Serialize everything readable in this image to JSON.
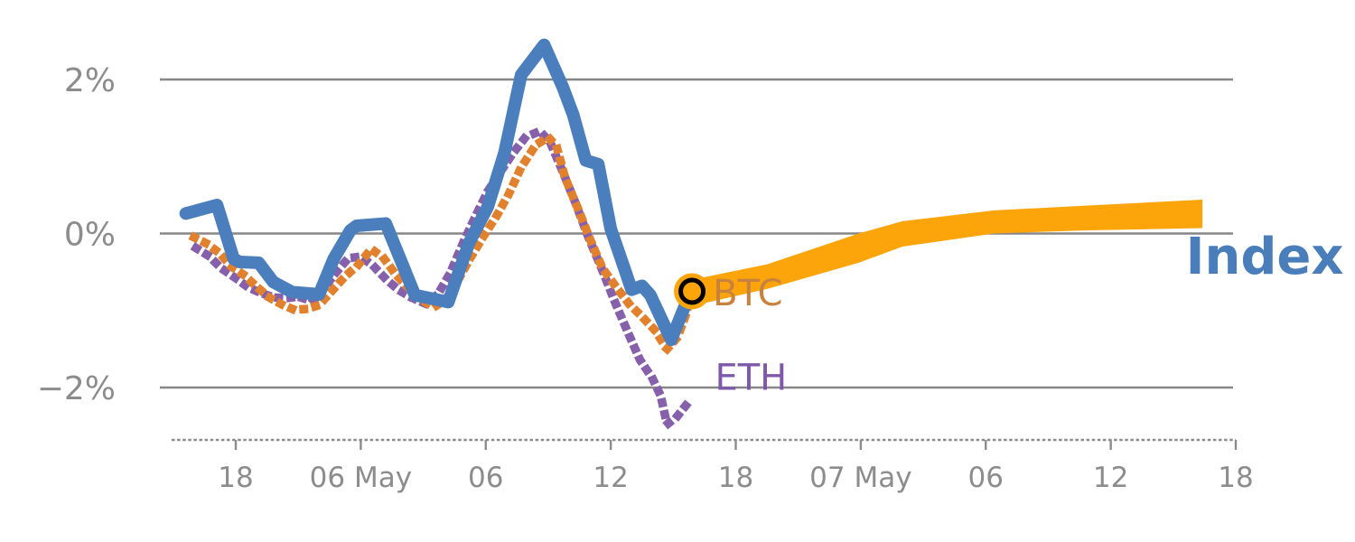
{
  "chart_data": {
    "type": "line",
    "title": "",
    "x_axis": {
      "unit": "hours relative to 05 May 18:00",
      "range_hours": [
        -3.65,
        48.0
      ],
      "ticks": [
        {
          "t": 0,
          "label": "18"
        },
        {
          "t": 6,
          "label": "06 May"
        },
        {
          "t": 12,
          "label": "06"
        },
        {
          "t": 18,
          "label": "12"
        },
        {
          "t": 24,
          "label": "18"
        },
        {
          "t": 30,
          "label": "07 May"
        },
        {
          "t": 36,
          "label": "06"
        },
        {
          "t": 42,
          "label": "12"
        },
        {
          "t": 48,
          "label": "18"
        }
      ]
    },
    "y_axis": {
      "unit": "percent change",
      "range": [
        -2.7,
        2.75
      ],
      "gridlines": [
        {
          "v": 2,
          "label": "2%"
        },
        {
          "v": 0,
          "label": "0%"
        },
        {
          "v": -2,
          "label": "−2%"
        }
      ]
    },
    "series": [
      {
        "name": "Index",
        "style": "solid",
        "color": "#4A7EBC",
        "points": [
          [
            -2.4,
            0.26
          ],
          [
            -0.9,
            0.37
          ],
          [
            -0.1,
            -0.33
          ],
          [
            0.2,
            -0.37
          ],
          [
            1.1,
            -0.38
          ],
          [
            1.8,
            -0.63
          ],
          [
            2.7,
            -0.76
          ],
          [
            4.0,
            -0.79
          ],
          [
            4.7,
            -0.33
          ],
          [
            5.5,
            0.04
          ],
          [
            5.8,
            0.1
          ],
          [
            7.2,
            0.13
          ],
          [
            8.0,
            -0.4
          ],
          [
            8.6,
            -0.8
          ],
          [
            10.2,
            -0.89
          ],
          [
            11.2,
            -0.12
          ],
          [
            12.1,
            0.35
          ],
          [
            12.9,
            1.05
          ],
          [
            13.7,
            2.06
          ],
          [
            14.8,
            2.45
          ],
          [
            15.7,
            1.9
          ],
          [
            16.2,
            1.54
          ],
          [
            16.8,
            0.95
          ],
          [
            17.4,
            0.9
          ],
          [
            18.0,
            0.06
          ],
          [
            18.7,
            -0.49
          ],
          [
            19.0,
            -0.73
          ],
          [
            19.5,
            -0.68
          ],
          [
            19.9,
            -0.8
          ],
          [
            20.9,
            -1.38
          ],
          [
            21.8,
            -0.78
          ]
        ]
      },
      {
        "name": "BTC",
        "style": "dotted",
        "color": "#E2812D",
        "points": [
          [
            -2.0,
            -0.05
          ],
          [
            -1.4,
            -0.13
          ],
          [
            -0.8,
            -0.25
          ],
          [
            -0.2,
            -0.43
          ],
          [
            0.4,
            -0.54
          ],
          [
            1.0,
            -0.69
          ],
          [
            1.6,
            -0.83
          ],
          [
            2.2,
            -0.92
          ],
          [
            2.8,
            -0.99
          ],
          [
            3.4,
            -0.98
          ],
          [
            4.0,
            -0.93
          ],
          [
            4.6,
            -0.75
          ],
          [
            5.2,
            -0.57
          ],
          [
            5.9,
            -0.4
          ],
          [
            6.5,
            -0.2
          ],
          [
            7.1,
            -0.32
          ],
          [
            7.7,
            -0.54
          ],
          [
            8.3,
            -0.71
          ],
          [
            8.9,
            -0.86
          ],
          [
            9.5,
            -0.96
          ],
          [
            10.1,
            -0.85
          ],
          [
            10.7,
            -0.59
          ],
          [
            11.3,
            -0.3
          ],
          [
            11.9,
            -0.03
          ],
          [
            12.5,
            0.22
          ],
          [
            13.1,
            0.51
          ],
          [
            13.7,
            0.86
          ],
          [
            14.4,
            1.15
          ],
          [
            15.0,
            1.25
          ],
          [
            15.4,
            1.13
          ],
          [
            15.8,
            0.73
          ],
          [
            16.4,
            0.34
          ],
          [
            17.0,
            -0.07
          ],
          [
            17.6,
            -0.45
          ],
          [
            18.3,
            -0.71
          ],
          [
            18.9,
            -0.92
          ],
          [
            19.5,
            -1.08
          ],
          [
            20.1,
            -1.25
          ],
          [
            20.7,
            -1.5
          ],
          [
            21.2,
            -1.35
          ],
          [
            21.6,
            -1.06
          ],
          [
            21.9,
            -0.75
          ]
        ]
      },
      {
        "name": "ETH",
        "style": "dotted",
        "color": "#8660AA",
        "points": [
          [
            -1.9,
            -0.19
          ],
          [
            -1.3,
            -0.29
          ],
          [
            -0.7,
            -0.45
          ],
          [
            0.0,
            -0.58
          ],
          [
            0.6,
            -0.7
          ],
          [
            1.2,
            -0.77
          ],
          [
            1.8,
            -0.83
          ],
          [
            2.4,
            -0.84
          ],
          [
            3.0,
            -0.82
          ],
          [
            3.7,
            -0.88
          ],
          [
            4.2,
            -0.72
          ],
          [
            4.8,
            -0.51
          ],
          [
            5.4,
            -0.32
          ],
          [
            6.0,
            -0.3
          ],
          [
            6.6,
            -0.42
          ],
          [
            7.2,
            -0.59
          ],
          [
            7.8,
            -0.73
          ],
          [
            8.5,
            -0.84
          ],
          [
            9.1,
            -0.91
          ],
          [
            9.7,
            -0.79
          ],
          [
            10.3,
            -0.51
          ],
          [
            10.9,
            -0.13
          ],
          [
            11.5,
            0.22
          ],
          [
            12.1,
            0.55
          ],
          [
            12.7,
            0.8
          ],
          [
            13.3,
            1.04
          ],
          [
            13.9,
            1.25
          ],
          [
            14.6,
            1.33
          ],
          [
            15.1,
            1.18
          ],
          [
            15.7,
            0.8
          ],
          [
            16.3,
            0.4
          ],
          [
            16.9,
            -0.03
          ],
          [
            17.6,
            -0.48
          ],
          [
            18.2,
            -0.89
          ],
          [
            18.8,
            -1.27
          ],
          [
            19.4,
            -1.64
          ],
          [
            20.0,
            -1.88
          ],
          [
            20.4,
            -2.11
          ],
          [
            20.7,
            -2.48
          ],
          [
            21.2,
            -2.37
          ],
          [
            21.7,
            -2.2
          ]
        ]
      }
    ],
    "projection_band": {
      "name": "forecast-band",
      "color": "#FBA50A",
      "top": [
        [
          21.9,
          -0.6
        ],
        [
          25.5,
          -0.4
        ],
        [
          29.9,
          0.0
        ],
        [
          32.0,
          0.16
        ],
        [
          36.4,
          0.3
        ],
        [
          40.7,
          0.36
        ],
        [
          46.4,
          0.44
        ]
      ],
      "bottom": [
        [
          21.9,
          -0.94
        ],
        [
          25.5,
          -0.72
        ],
        [
          29.9,
          -0.38
        ],
        [
          32.0,
          -0.17
        ],
        [
          36.4,
          0.0
        ],
        [
          40.7,
          0.04
        ],
        [
          46.4,
          0.07
        ]
      ]
    },
    "marker": {
      "t": 21.9,
      "v": -0.75,
      "fill": "#FBA50A",
      "ring_color": "#000000"
    },
    "labels": {
      "btc": {
        "text": "BTC",
        "t": 22.9,
        "v": -0.93,
        "color": "#C8823E"
      },
      "eth": {
        "text": "ETH",
        "t": 23.0,
        "v": -2.03,
        "color": "#7E59A9"
      },
      "index": {
        "text": "Index",
        "t": 45.6,
        "v": -0.52,
        "color": "#4A7EBB"
      }
    }
  }
}
